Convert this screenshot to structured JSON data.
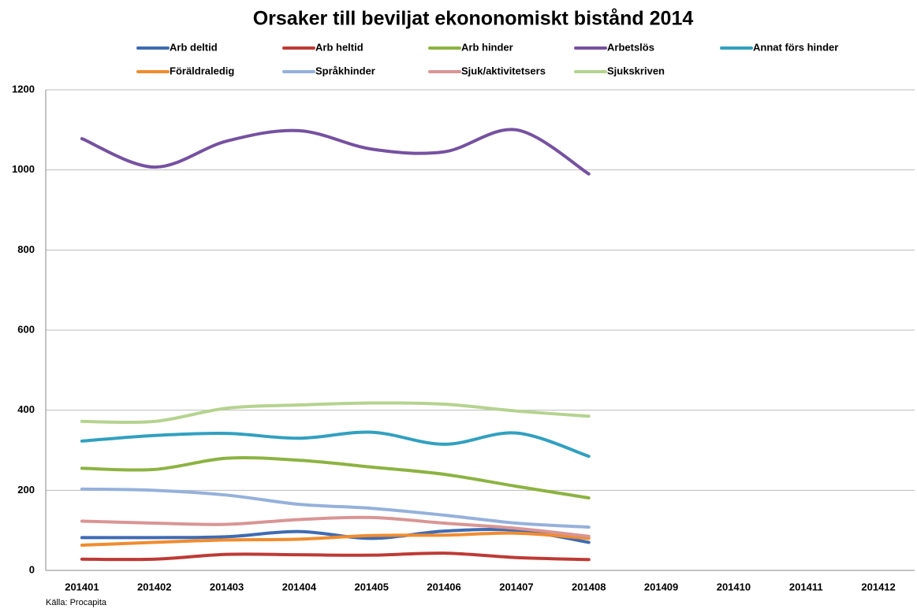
{
  "chart_data": {
    "type": "line",
    "title": "Orsaker till beviljat ekononomiskt bistånd 2014",
    "source": "Källa: Procapita",
    "categories": [
      "201401",
      "201402",
      "201403",
      "201404",
      "201405",
      "201406",
      "201407",
      "201408",
      "201409",
      "201410",
      "201411",
      "201412"
    ],
    "series": [
      {
        "name": "Arb deltid",
        "color": "#3f6bb2",
        "values": [
          82,
          82,
          84,
          97,
          80,
          98,
          100,
          70,
          null,
          null,
          null,
          null
        ]
      },
      {
        "name": "Arb heltid",
        "color": "#be3a35",
        "values": [
          28,
          28,
          40,
          39,
          38,
          43,
          32,
          27,
          null,
          null,
          null,
          null
        ]
      },
      {
        "name": "Arb hinder",
        "color": "#8cb341",
        "values": [
          255,
          252,
          280,
          275,
          258,
          240,
          210,
          181,
          null,
          null,
          null,
          null
        ]
      },
      {
        "name": "Arbetslös",
        "color": "#7651a0",
        "values": [
          1078,
          1007,
          1072,
          1098,
          1052,
          1045,
          1100,
          990,
          null,
          null,
          null,
          null
        ]
      },
      {
        "name": "Annat förs hinder",
        "color": "#31a0c0",
        "values": [
          323,
          337,
          342,
          330,
          345,
          315,
          343,
          285,
          null,
          null,
          null,
          null
        ]
      },
      {
        "name": "Föräldraledig",
        "color": "#f08c2f",
        "values": [
          63,
          70,
          76,
          78,
          87,
          88,
          93,
          80,
          null,
          null,
          null,
          null
        ]
      },
      {
        "name": "Språkhinder",
        "color": "#95b1db",
        "values": [
          203,
          200,
          188,
          165,
          155,
          138,
          118,
          108,
          null,
          null,
          null,
          null
        ]
      },
      {
        "name": "Sjuk/aktivitetsers",
        "color": "#d99594",
        "values": [
          123,
          118,
          115,
          127,
          132,
          118,
          105,
          85,
          null,
          null,
          null,
          null
        ]
      },
      {
        "name": "Sjukskriven",
        "color": "#b5d38f",
        "values": [
          372,
          372,
          405,
          413,
          418,
          415,
          398,
          385,
          null,
          null,
          null,
          null
        ]
      }
    ],
    "ylim": [
      0,
      1200
    ],
    "yticks": [
      0,
      200,
      400,
      600,
      800,
      1000,
      1200
    ],
    "grid": true,
    "legend": "top",
    "smooth": true
  }
}
